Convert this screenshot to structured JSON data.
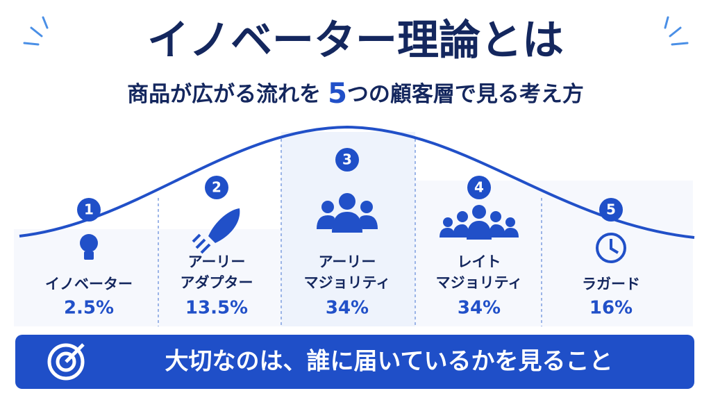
{
  "header": {
    "title": "イノベーター理論とは",
    "subtitle_before": "商品が広がる流れを",
    "subtitle_number": "5",
    "subtitle_after": "つの顧客層で見る考え方"
  },
  "segments": [
    {
      "number": "1",
      "label": [
        "イノベーター"
      ],
      "share": "2.5%"
    },
    {
      "number": "2",
      "label": [
        "アーリー",
        "アダプター"
      ],
      "share": "13.5%"
    },
    {
      "number": "3",
      "label": [
        "アーリー",
        "マジョリティ"
      ],
      "share": "34%"
    },
    {
      "number": "4",
      "label": [
        "レイト",
        "マジョリティ"
      ],
      "share": "34%"
    },
    {
      "number": "5",
      "label": [
        "ラガード"
      ],
      "share": "16%"
    }
  ],
  "footer": {
    "message": "大切なのは、誰に届いているかを見ること"
  }
}
